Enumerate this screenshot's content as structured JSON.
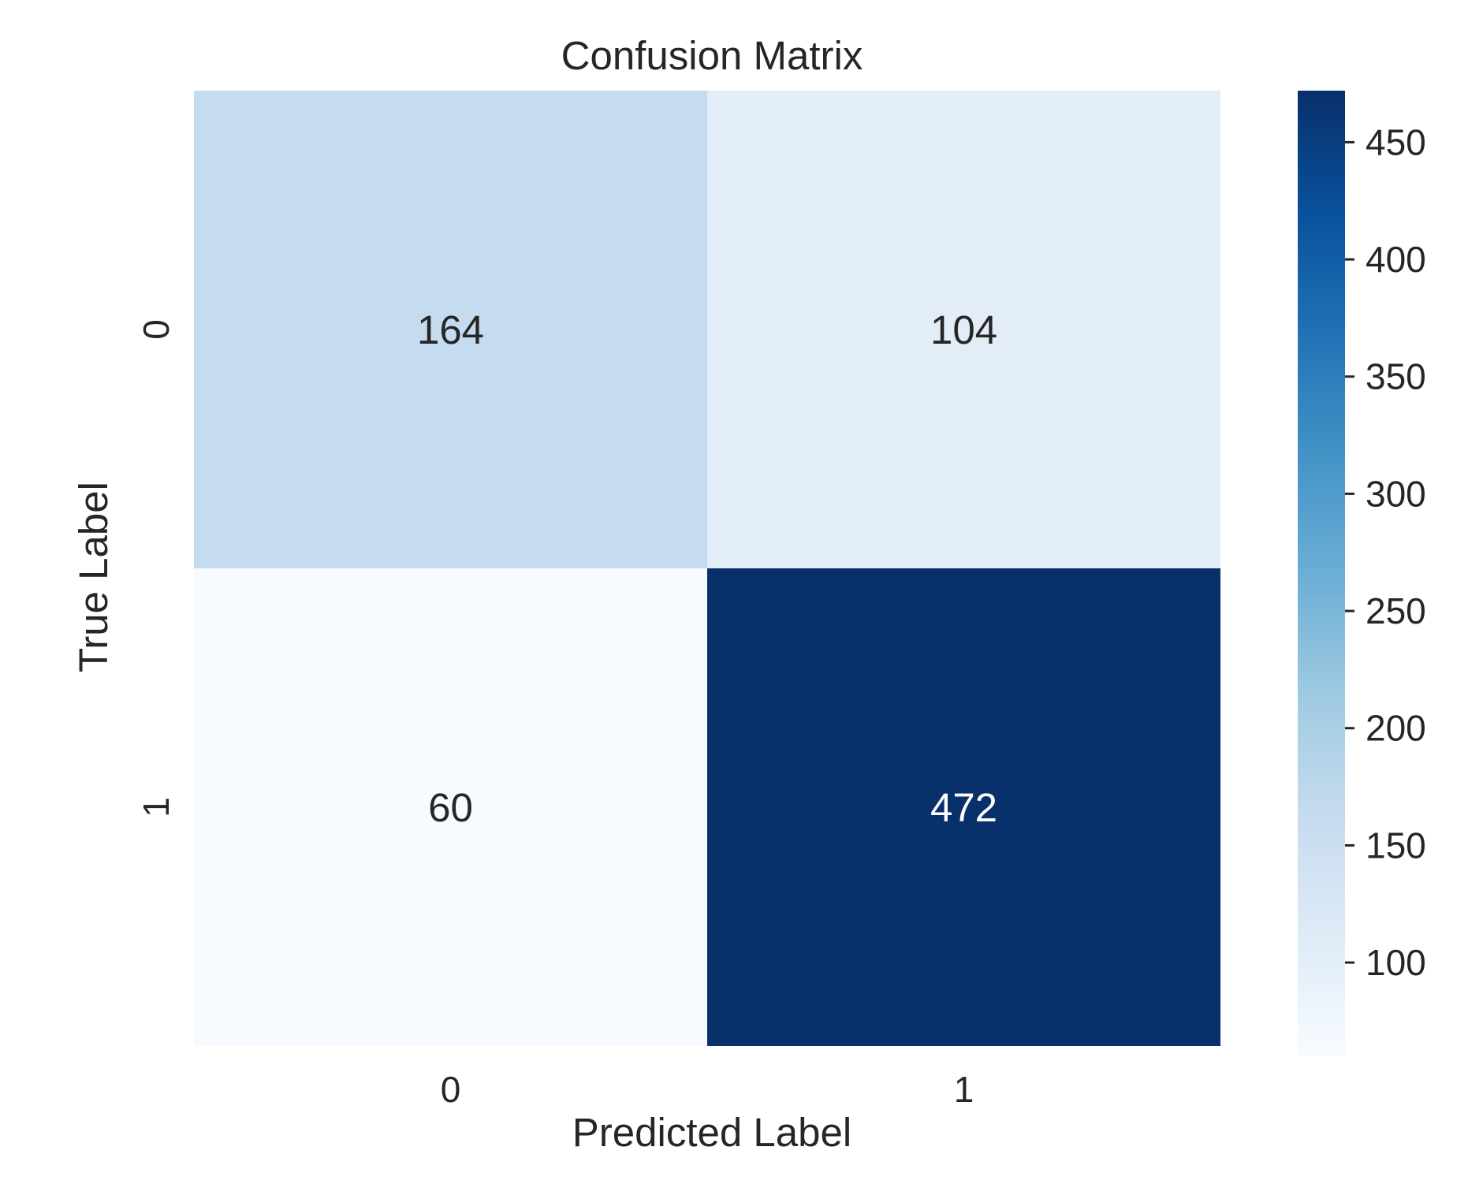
{
  "chart_data": {
    "type": "heatmap",
    "title": "Confusion Matrix",
    "xlabel": "Predicted Label",
    "ylabel": "True Label",
    "x_categories": [
      "0",
      "1"
    ],
    "y_categories": [
      "0",
      "1"
    ],
    "values": [
      [
        164,
        104
      ],
      [
        60,
        472
      ]
    ],
    "colorbar": {
      "colormap": "Blues",
      "range": [
        60,
        472
      ],
      "ticks": [
        100,
        150,
        200,
        250,
        300,
        350,
        400,
        450
      ],
      "tick_labels": [
        "100",
        "150",
        "200",
        "250",
        "300",
        "350",
        "400",
        "450"
      ]
    },
    "grid": false
  }
}
